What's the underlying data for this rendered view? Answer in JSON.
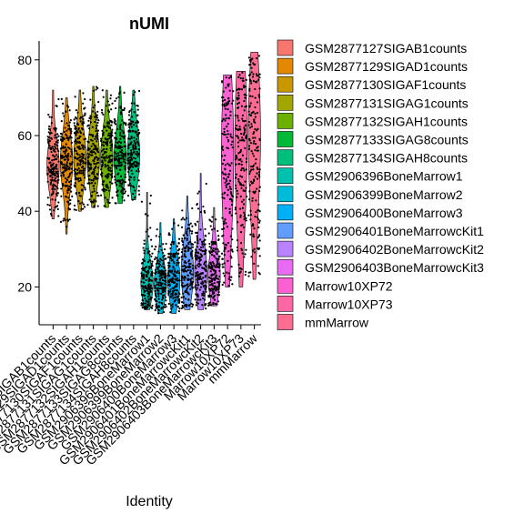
{
  "chart_data": {
    "type": "violin",
    "title": "nUMI",
    "xlabel": "Identity",
    "ylabel": "",
    "ylim": [
      10,
      85
    ],
    "yticks": [
      20,
      40,
      60,
      80
    ],
    "grid": false,
    "legend_position": "right",
    "show_points": true,
    "categories": [
      "GSM2877127SIGAB1counts",
      "GSM2877129SIGAD1counts",
      "GSM2877130SIGAF1counts",
      "GSM2877131SIGAG1counts",
      "GSM2877132SIGAH1counts",
      "GSM2877133SIGAG8counts",
      "GSM2877134SIGAH8counts",
      "GSM2906396BoneMarrow1",
      "GSM2906399BoneMarrow2",
      "GSM2906400BoneMarrow3",
      "GSM2906401BoneMarrowcKit1",
      "GSM2906402BoneMarrowcKit2",
      "GSM2906403BoneMarrowcKit3",
      "Marrow10XP72",
      "Marrow10XP73",
      "mmMarrow"
    ],
    "colors": [
      "#F8766D",
      "#E58700",
      "#C99800",
      "#A3A500",
      "#6BB100",
      "#00BA38",
      "#00BF7D",
      "#00C0AF",
      "#00BCD8",
      "#00B0F6",
      "#619CFF",
      "#B983FF",
      "#E76BF3",
      "#FD61D1",
      "#FF67A4",
      "#FF6C91"
    ],
    "series": [
      {
        "min": 38,
        "q1": 48,
        "median": 52,
        "q3": 57,
        "max": 72
      },
      {
        "min": 34,
        "q1": 48,
        "median": 53,
        "q3": 58,
        "max": 70
      },
      {
        "min": 40,
        "q1": 49,
        "median": 54,
        "q3": 59,
        "max": 72
      },
      {
        "min": 41,
        "q1": 49,
        "median": 54,
        "q3": 59,
        "max": 73
      },
      {
        "min": 41,
        "q1": 49,
        "median": 54,
        "q3": 59,
        "max": 72
      },
      {
        "min": 42,
        "q1": 49,
        "median": 54,
        "q3": 59,
        "max": 73
      },
      {
        "min": 43,
        "q1": 50,
        "median": 55,
        "q3": 60,
        "max": 72
      },
      {
        "min": 14,
        "q1": 18,
        "median": 21,
        "q3": 25,
        "max": 45
      },
      {
        "min": 13,
        "q1": 18,
        "median": 21,
        "q3": 25,
        "max": 37
      },
      {
        "min": 13,
        "q1": 19,
        "median": 22,
        "q3": 27,
        "max": 38
      },
      {
        "min": 14,
        "q1": 20,
        "median": 24,
        "q3": 30,
        "max": 44
      },
      {
        "min": 14,
        "q1": 20,
        "median": 24,
        "q3": 30,
        "max": 50
      },
      {
        "min": 15,
        "q1": 20,
        "median": 23,
        "q3": 28,
        "max": 41
      },
      {
        "min": 20,
        "q1": 38,
        "median": 55,
        "q3": 68,
        "max": 76
      },
      {
        "min": 20,
        "q1": 40,
        "median": 58,
        "q3": 70,
        "max": 77
      },
      {
        "min": 22,
        "q1": 45,
        "median": 60,
        "q3": 72,
        "max": 82
      }
    ]
  }
}
